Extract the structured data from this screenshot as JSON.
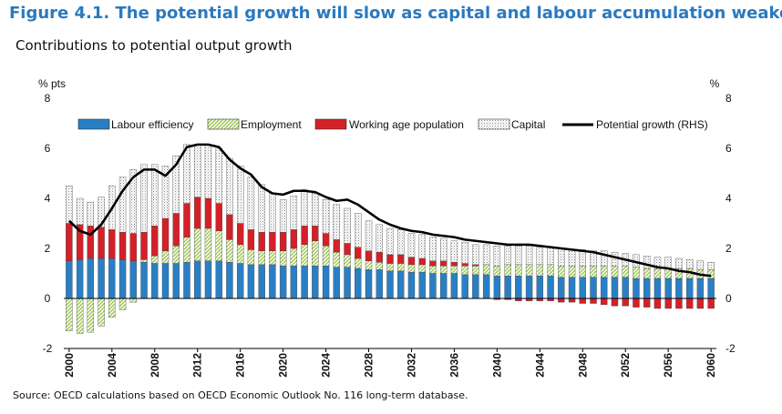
{
  "figure": {
    "title": "Figure 4.1. The potential growth will slow as capital and labour accumulation weakens",
    "subtitle": "Contributions to potential output growth",
    "source": "Source: OECD calculations based on OECD Economic Outlook No. 116 long-term database."
  },
  "chart_data": {
    "type": "bar",
    "stacked": true,
    "left_axis_unit": "% pts",
    "right_axis_unit": "%",
    "ylim": [
      -2,
      8
    ],
    "y_ticks": [
      -2,
      0,
      2,
      4,
      6,
      8
    ],
    "x_tick_labels": [
      "2000",
      "2004",
      "2008",
      "2012",
      "2016",
      "2020",
      "2024",
      "2028",
      "2032",
      "2036",
      "2040",
      "2044",
      "2048",
      "2052",
      "2056",
      "2060"
    ],
    "years": [
      2000,
      2001,
      2002,
      2003,
      2004,
      2005,
      2006,
      2007,
      2008,
      2009,
      2010,
      2011,
      2012,
      2013,
      2014,
      2015,
      2016,
      2017,
      2018,
      2019,
      2020,
      2021,
      2022,
      2023,
      2024,
      2025,
      2026,
      2027,
      2028,
      2029,
      2030,
      2031,
      2032,
      2033,
      2034,
      2035,
      2036,
      2037,
      2038,
      2039,
      2040,
      2041,
      2042,
      2043,
      2044,
      2045,
      2046,
      2047,
      2048,
      2049,
      2050,
      2051,
      2052,
      2053,
      2054,
      2055,
      2056,
      2057,
      2058,
      2059,
      2060
    ],
    "grid": false,
    "legend_position": "top",
    "colors": {
      "labour_efficiency": "#2a7fc4",
      "employment": "#9bc54e",
      "working_age_population": "#d42027",
      "capital": "#c9c9c9",
      "potential_growth": "#000000"
    },
    "series": [
      {
        "name": "Labour efficiency",
        "key": "labour_efficiency",
        "values": [
          1.5,
          1.55,
          1.6,
          1.6,
          1.6,
          1.55,
          1.5,
          1.45,
          1.4,
          1.4,
          1.4,
          1.45,
          1.5,
          1.5,
          1.5,
          1.45,
          1.4,
          1.35,
          1.35,
          1.35,
          1.3,
          1.3,
          1.3,
          1.3,
          1.3,
          1.25,
          1.25,
          1.2,
          1.15,
          1.15,
          1.1,
          1.1,
          1.05,
          1.05,
          1.0,
          1.0,
          1.0,
          0.95,
          0.95,
          0.95,
          0.9,
          0.9,
          0.9,
          0.9,
          0.9,
          0.9,
          0.85,
          0.85,
          0.85,
          0.85,
          0.85,
          0.85,
          0.85,
          0.8,
          0.8,
          0.8,
          0.8,
          0.8,
          0.8,
          0.8,
          0.8
        ]
      },
      {
        "name": "Employment",
        "key": "employment",
        "values": [
          -1.3,
          -1.4,
          -1.35,
          -1.1,
          -0.75,
          -0.45,
          -0.15,
          0.1,
          0.3,
          0.5,
          0.7,
          1.0,
          1.3,
          1.3,
          1.2,
          0.9,
          0.75,
          0.6,
          0.55,
          0.55,
          0.6,
          0.7,
          0.85,
          1.0,
          0.8,
          0.6,
          0.5,
          0.4,
          0.35,
          0.3,
          0.3,
          0.3,
          0.3,
          0.3,
          0.3,
          0.3,
          0.3,
          0.35,
          0.35,
          0.4,
          0.4,
          0.45,
          0.45,
          0.45,
          0.45,
          0.45,
          0.45,
          0.45,
          0.45,
          0.45,
          0.45,
          0.45,
          0.45,
          0.45,
          0.4,
          0.4,
          0.4,
          0.4,
          0.4,
          0.35,
          0.35
        ]
      },
      {
        "name": "Working age population",
        "key": "working_age_population",
        "values": [
          1.5,
          1.4,
          1.3,
          1.25,
          1.15,
          1.1,
          1.1,
          1.1,
          1.2,
          1.3,
          1.3,
          1.35,
          1.25,
          1.2,
          1.1,
          1.0,
          0.85,
          0.8,
          0.75,
          0.75,
          0.75,
          0.75,
          0.75,
          0.6,
          0.5,
          0.5,
          0.45,
          0.45,
          0.4,
          0.4,
          0.35,
          0.35,
          0.3,
          0.25,
          0.2,
          0.2,
          0.15,
          0.1,
          0.05,
          0.0,
          -0.05,
          -0.05,
          -0.1,
          -0.1,
          -0.1,
          -0.1,
          -0.15,
          -0.15,
          -0.2,
          -0.2,
          -0.25,
          -0.3,
          -0.3,
          -0.35,
          -0.35,
          -0.4,
          -0.4,
          -0.4,
          -0.4,
          -0.4,
          -0.4
        ]
      },
      {
        "name": "Capital",
        "key": "capital",
        "values": [
          1.5,
          1.05,
          0.95,
          1.2,
          1.75,
          2.2,
          2.55,
          2.7,
          2.45,
          2.1,
          2.3,
          2.35,
          2.1,
          2.15,
          2.2,
          2.25,
          2.3,
          2.1,
          1.9,
          1.55,
          1.3,
          1.35,
          1.45,
          1.3,
          1.35,
          1.4,
          1.4,
          1.35,
          1.2,
          1.1,
          1.05,
          1.0,
          0.95,
          0.95,
          0.95,
          0.9,
          0.85,
          0.85,
          0.8,
          0.8,
          0.8,
          0.75,
          0.75,
          0.75,
          0.7,
          0.7,
          0.7,
          0.65,
          0.65,
          0.6,
          0.6,
          0.55,
          0.5,
          0.5,
          0.5,
          0.45,
          0.45,
          0.4,
          0.35,
          0.35,
          0.3
        ]
      },
      {
        "name": "Potential growth (RHS)",
        "key": "potential_growth",
        "type": "line",
        "axis": "right",
        "values": [
          3.1,
          2.7,
          2.55,
          2.95,
          3.6,
          4.3,
          4.85,
          5.15,
          5.15,
          4.9,
          5.35,
          6.05,
          6.15,
          6.15,
          6.05,
          5.55,
          5.2,
          4.95,
          4.45,
          4.2,
          4.15,
          4.3,
          4.3,
          4.25,
          4.05,
          3.9,
          3.95,
          3.75,
          3.45,
          3.15,
          2.95,
          2.8,
          2.7,
          2.65,
          2.55,
          2.5,
          2.45,
          2.35,
          2.3,
          2.25,
          2.2,
          2.15,
          2.15,
          2.15,
          2.1,
          2.05,
          2.0,
          1.95,
          1.9,
          1.85,
          1.75,
          1.65,
          1.55,
          1.45,
          1.35,
          1.25,
          1.2,
          1.1,
          1.05,
          0.95,
          0.9
        ]
      }
    ]
  }
}
